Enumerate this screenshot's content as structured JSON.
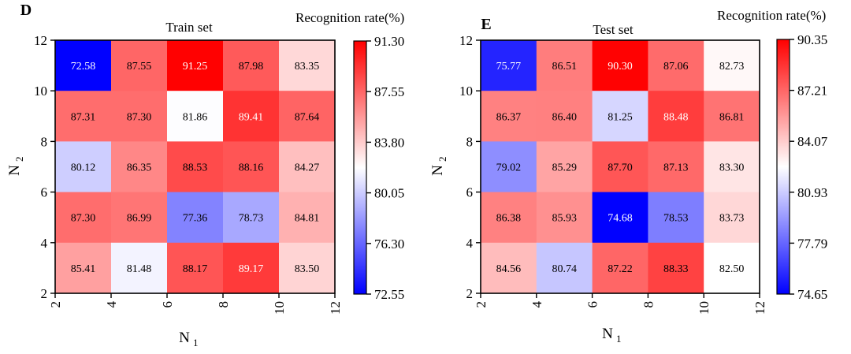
{
  "chart_data": [
    {
      "type": "heatmap",
      "panel": "D",
      "title": "Train set",
      "colorbar_title": "Recognition rate(%)",
      "colorbar_ticks": [
        "91.30",
        "87.55",
        "83.80",
        "80.05",
        "76.30",
        "72.55"
      ],
      "vmin": 72.55,
      "vmax": 91.3,
      "x_ticks": [
        "2",
        "4",
        "6",
        "8",
        "10",
        "12"
      ],
      "y_ticks": [
        "2",
        "4",
        "6",
        "8",
        "10",
        "12"
      ],
      "xlabel_main": "N",
      "xlabel_sub": "1",
      "ylabel_main": "N",
      "ylabel_sub": "2",
      "xlim": [
        2,
        12
      ],
      "ylim": [
        2,
        12
      ],
      "rows_top_to_bottom": [
        [
          72.58,
          87.55,
          91.25,
          87.98,
          83.35
        ],
        [
          87.31,
          87.3,
          81.86,
          89.41,
          87.64
        ],
        [
          80.12,
          86.35,
          88.53,
          88.16,
          84.27
        ],
        [
          87.3,
          86.99,
          77.36,
          78.73,
          84.81
        ],
        [
          85.41,
          81.48,
          88.17,
          89.17,
          83.5
        ]
      ],
      "labels_top_to_bottom": [
        [
          "72.58",
          "87.55",
          "91.25",
          "87.98",
          "83.35"
        ],
        [
          "87.31",
          "87.30",
          "81.86",
          "89.41",
          "87.64"
        ],
        [
          "80.12",
          "86.35",
          "88.53",
          "88.16",
          "84.27"
        ],
        [
          "87.30",
          "86.99",
          "77.36",
          "78.73",
          "84.81"
        ],
        [
          "85.41",
          "81.48",
          "88.17",
          "89.17",
          "83.50"
        ]
      ]
    },
    {
      "type": "heatmap",
      "panel": "E",
      "title": "Test set",
      "colorbar_title": "Recognition rate(%)",
      "colorbar_ticks": [
        "90.35",
        "87.21",
        "84.07",
        "80.93",
        "77.79",
        "74.65"
      ],
      "vmin": 74.65,
      "vmax": 90.35,
      "x_ticks": [
        "2",
        "4",
        "6",
        "8",
        "10",
        "12"
      ],
      "y_ticks": [
        "2",
        "4",
        "6",
        "8",
        "10",
        "12"
      ],
      "xlabel_main": "N",
      "xlabel_sub": "1",
      "ylabel_main": "N",
      "ylabel_sub": "2",
      "xlim": [
        2,
        12
      ],
      "ylim": [
        2,
        12
      ],
      "rows_top_to_bottom": [
        [
          75.77,
          86.51,
          90.3,
          87.06,
          82.73
        ],
        [
          86.37,
          86.4,
          81.25,
          88.48,
          86.81
        ],
        [
          79.02,
          85.29,
          87.7,
          87.13,
          83.3
        ],
        [
          86.38,
          85.93,
          74.68,
          78.53,
          83.73
        ],
        [
          84.56,
          80.74,
          87.22,
          88.33,
          82.5
        ]
      ],
      "labels_top_to_bottom": [
        [
          "75.77",
          "86.51",
          "90.30",
          "87.06",
          "82.73"
        ],
        [
          "86.37",
          "86.40",
          "81.25",
          "88.48",
          "86.81"
        ],
        [
          "79.02",
          "85.29",
          "87.70",
          "87.13",
          "83.30"
        ],
        [
          "86.38",
          "85.93",
          "74.68",
          "78.53",
          "83.73"
        ],
        [
          "84.56",
          "80.74",
          "87.22",
          "88.33",
          "82.50"
        ]
      ]
    }
  ],
  "colormap": {
    "low": "#0000ff",
    "mid": "#ffffff",
    "high": "#ff0000"
  }
}
